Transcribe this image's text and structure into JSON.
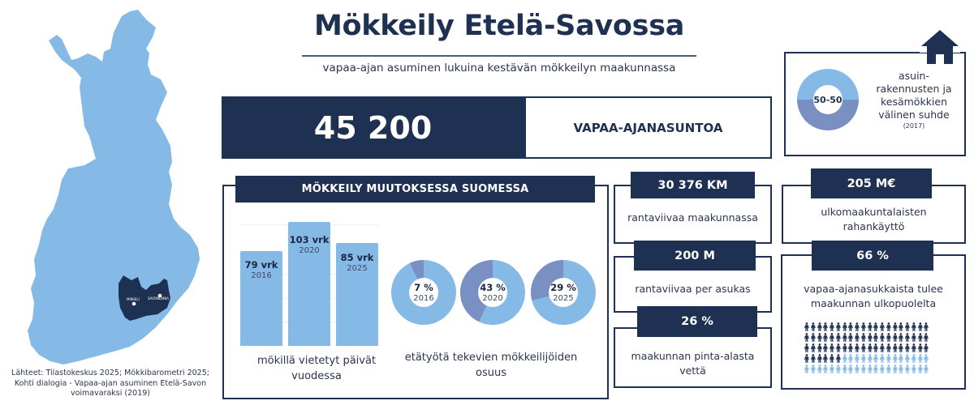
{
  "title": "Mökkeily Etelä-Savossa",
  "subtitle": "vapaa-ajan asuminen lukuina kestävän mökkeilyn maakunnassa",
  "map": {
    "region_color": "#1f3152",
    "country_color": "#86bae6",
    "cities": [
      "MIKKELI",
      "SAVONLINNA"
    ],
    "sources": "Lähteet: Tilastokeskus 2025; Mökkibarometri 2025; Kohti dialogia - Vapaa-ajan asuminen Etelä-Savon voimavaraksi (2019)"
  },
  "headline_stat": {
    "value": "45 200",
    "label": "VAPAA-AJANASUNTOA"
  },
  "ratio": {
    "value": "50-50",
    "text": "asuin-rakennusten ja kesämökkien välinen suhde",
    "year": "(2017)",
    "icon": "house-icon"
  },
  "change_section": {
    "header": "MÖKKEILY MUUTOKSESSA SUOMESSA",
    "bars_caption": "mökillä vietetyt päivät vuodessa",
    "donuts_caption": "etätyötä tekevien mökkeilijöiden osuus"
  },
  "stats": {
    "coastline": {
      "value": "30 376 KM",
      "label": "rantaviivaa maakunnassa"
    },
    "per_resident": {
      "value": "200 M",
      "label": "rantaviivaa per asukas"
    },
    "water": {
      "value": "26 %",
      "label": "maakunnan pinta-alasta vettä"
    },
    "spending": {
      "value": "205 M€",
      "label": "ulkomaakuntalaisten rahankäyttö"
    },
    "outside": {
      "value": "66 %",
      "label": "vapaa-ajanasukkaista tulee maakunnan ulkopuolelta"
    }
  },
  "colors": {
    "navy": "#1f3152",
    "light_blue": "#86bae6",
    "slate_blue": "#7a8fc2"
  },
  "chart_data": [
    {
      "type": "bar",
      "title": "mökillä vietetyt päivät vuodessa",
      "categories": [
        "2016",
        "2020",
        "2025"
      ],
      "values": [
        79,
        103,
        85
      ],
      "value_labels": [
        "79 vrk",
        "103 vrk",
        "85 vrk"
      ],
      "unit": "vrk",
      "grid": true
    },
    {
      "type": "pie",
      "title": "etätyötä tekevien mökkeilijöiden osuus",
      "donut": true,
      "categories": [
        "2016",
        "2020",
        "2025"
      ],
      "values": [
        7,
        43,
        29
      ],
      "value_labels": [
        "7 %",
        "43 %",
        "29 %"
      ],
      "unit": "%"
    },
    {
      "type": "pie",
      "title": "asuin-rakennusten ja kesämökkien välinen suhde (2017)",
      "donut": true,
      "categories": [
        "asuinrakennukset",
        "kesämökit"
      ],
      "values": [
        50,
        50
      ],
      "value_labels": [
        "50-50"
      ]
    },
    {
      "type": "table",
      "title": "vapaa-ajanasukkaista tulee maakunnan ulkopuolelta",
      "pictogram": {
        "total": 100,
        "highlighted": 66,
        "columns": 20,
        "rows": 5
      }
    }
  ]
}
